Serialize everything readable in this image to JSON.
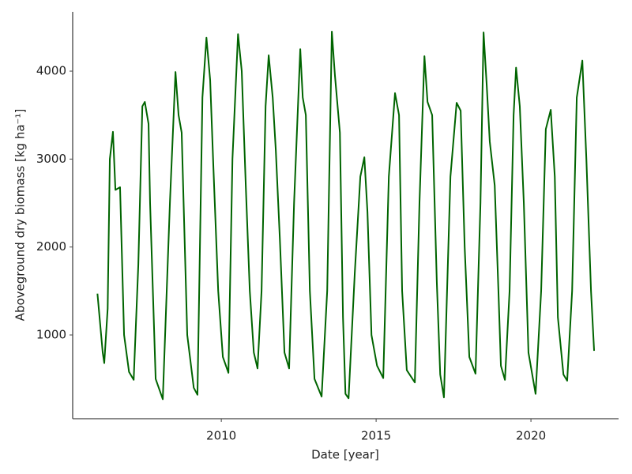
{
  "chart_data": {
    "type": "line",
    "x_label": "Date [year]",
    "y_label": "Aboveground dry biomass [kg ha⁻¹]",
    "xlim": [
      2005.2,
      2022.83
    ],
    "ylim": [
      48,
      4674
    ],
    "xticks": [
      2010,
      2015,
      2020
    ],
    "yticks": [
      1000,
      2000,
      3000,
      4000
    ],
    "grid": false,
    "series": [
      {
        "color": "#006400",
        "x": [
          2006.0,
          2006.17,
          2006.22,
          2006.33,
          2006.4,
          2006.5,
          2006.58,
          2006.73,
          2006.86,
          2007.02,
          2007.17,
          2007.32,
          2007.45,
          2007.53,
          2007.65,
          2007.7,
          2007.88,
          2008.11,
          2008.34,
          2008.52,
          2008.62,
          2008.72,
          2008.9,
          2009.11,
          2009.23,
          2009.39,
          2009.52,
          2009.64,
          2009.74,
          2009.9,
          2010.05,
          2010.23,
          2010.36,
          2010.54,
          2010.66,
          2010.79,
          2010.92,
          2011.05,
          2011.17,
          2011.3,
          2011.43,
          2011.53,
          2011.66,
          2011.76,
          2011.89,
          2012.04,
          2012.19,
          2012.35,
          2012.55,
          2012.63,
          2012.73,
          2012.86,
          2013.01,
          2013.24,
          2013.42,
          2013.57,
          2013.67,
          2013.83,
          2013.93,
          2014.01,
          2014.11,
          2014.31,
          2014.49,
          2014.62,
          2014.72,
          2014.85,
          2015.03,
          2015.23,
          2015.41,
          2015.61,
          2015.74,
          2015.84,
          2015.99,
          2016.25,
          2016.4,
          2016.56,
          2016.66,
          2016.81,
          2016.96,
          2017.07,
          2017.19,
          2017.4,
          2017.6,
          2017.73,
          2017.86,
          2018.01,
          2018.21,
          2018.37,
          2018.47,
          2018.57,
          2018.67,
          2018.83,
          2018.95,
          2019.03,
          2019.16,
          2019.31,
          2019.44,
          2019.52,
          2019.64,
          2019.77,
          2019.92,
          2020.15,
          2020.33,
          2020.48,
          2020.64,
          2020.77,
          2020.87,
          2021.05,
          2021.17,
          2021.33,
          2021.48,
          2021.66,
          2021.79,
          2021.94,
          2022.04
        ],
        "values": [
          1470,
          800,
          680,
          1300,
          3000,
          3310,
          2650,
          2680,
          1000,
          580,
          490,
          1800,
          3600,
          3650,
          3400,
          2500,
          500,
          270,
          2500,
          3990,
          3500,
          3300,
          1000,
          400,
          320,
          3700,
          4380,
          3900,
          2950,
          1500,
          750,
          570,
          3000,
          4420,
          4000,
          2700,
          1500,
          800,
          620,
          1500,
          3600,
          4180,
          3700,
          3100,
          2100,
          800,
          620,
          2500,
          4250,
          3700,
          3500,
          1500,
          500,
          300,
          1500,
          4450,
          3950,
          3300,
          1200,
          330,
          280,
          1700,
          2800,
          3020,
          2400,
          1000,
          650,
          510,
          2800,
          3750,
          3500,
          1500,
          600,
          460,
          2500,
          4170,
          3650,
          3500,
          1600,
          550,
          290,
          2800,
          3640,
          3550,
          2000,
          750,
          560,
          2500,
          4440,
          3850,
          3200,
          2700,
          1500,
          650,
          490,
          1500,
          3500,
          4040,
          3600,
          2500,
          800,
          330,
          1500,
          3340,
          3560,
          2800,
          1200,
          550,
          480,
          1500,
          3700,
          4120,
          3000,
          1500,
          820
        ]
      }
    ]
  }
}
